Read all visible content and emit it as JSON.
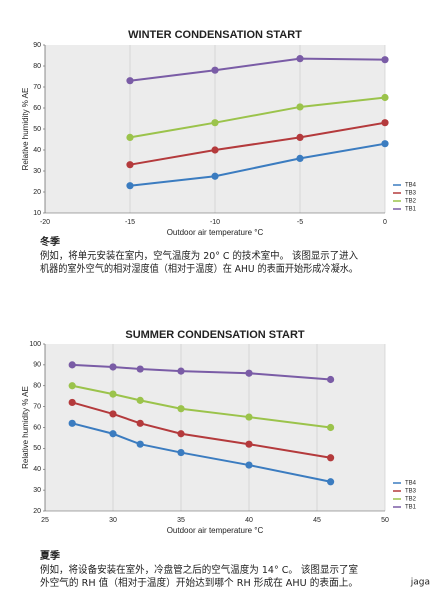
{
  "chart_data": [
    {
      "type": "line",
      "title": "WINTER CONDENSATION START",
      "x_label": "Outdoor air temperature °C",
      "y_label": "Relative humidity % AE",
      "x": [
        -15,
        -10,
        -5,
        0
      ],
      "xlim": [
        -20,
        0
      ],
      "xticks": [
        -20,
        -15,
        -10,
        -5,
        0
      ],
      "ylim": [
        10,
        90
      ],
      "yticks": [
        10,
        20,
        30,
        40,
        50,
        60,
        70,
        80,
        90
      ],
      "grid": true,
      "legend": "right",
      "series": [
        {
          "name": "TB4",
          "color": "#3b7cc0",
          "values": [
            23,
            27.5,
            36,
            43
          ]
        },
        {
          "name": "TB3",
          "color": "#b43a3c",
          "values": [
            33,
            40,
            46,
            53
          ]
        },
        {
          "name": "TB2",
          "color": "#9bc34b",
          "values": [
            46,
            53,
            60.5,
            65
          ]
        },
        {
          "name": "TB1",
          "color": "#7a5ca6",
          "values": [
            73,
            78,
            83.5,
            83
          ]
        }
      ]
    },
    {
      "type": "line",
      "title": "SUMMER CONDENSATION START",
      "x_label": "Outdoor air temperature °C",
      "y_label": "Relative humidity % AE",
      "x": [
        27,
        30,
        32,
        35,
        40,
        46
      ],
      "xlim": [
        25,
        50
      ],
      "xticks": [
        25,
        30,
        35,
        40,
        45,
        50
      ],
      "ylim": [
        20,
        100
      ],
      "yticks": [
        20,
        30,
        40,
        50,
        60,
        70,
        80,
        90,
        100
      ],
      "grid": true,
      "legend": "right",
      "series": [
        {
          "name": "TB4",
          "color": "#3b7cc0",
          "values": [
            62,
            57,
            52,
            48,
            42,
            34
          ]
        },
        {
          "name": "TB3",
          "color": "#b43a3c",
          "values": [
            72,
            66.5,
            62,
            57,
            52,
            45.5
          ]
        },
        {
          "name": "TB2",
          "color": "#9bc34b",
          "values": [
            80,
            76,
            73,
            69,
            65,
            60
          ]
        },
        {
          "name": "TB1",
          "color": "#7a5ca6",
          "values": [
            90,
            89,
            88,
            87,
            86,
            83
          ]
        }
      ]
    }
  ],
  "captions": [
    {
      "heading": "冬季",
      "lines": [
        "例如，将单元安装在室内，空气温度为 20° C 的技术室中。 该图显示了进入",
        "机器的室外空气的相对湿度值（相对于温度）在 AHU 的表面开始形成冷凝水。"
      ]
    },
    {
      "heading": "夏季",
      "lines": [
        "例如，将设备安装在室外，冷盘管之后的空气温度为 14° C。 该图显示了室",
        "外空气的 RH 值（相对于温度）开始达到哪个 RH 形成在 AHU 的表面上。"
      ]
    }
  ],
  "watermark": "jaga"
}
